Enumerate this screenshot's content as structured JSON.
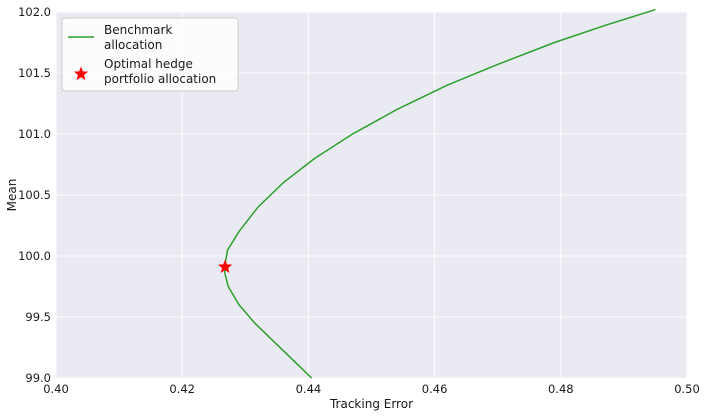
{
  "chart_data": {
    "type": "line",
    "title": "",
    "xlabel": "Tracking Error",
    "ylabel": "Mean",
    "xlim": [
      0.4,
      0.5
    ],
    "ylim": [
      99.0,
      102.0
    ],
    "xticks": [
      "0.40",
      "0.42",
      "0.44",
      "0.46",
      "0.48",
      "0.50"
    ],
    "yticks": [
      "99.0",
      "99.5",
      "100.0",
      "100.5",
      "101.0",
      "101.5",
      "102.0"
    ],
    "grid": true,
    "legend_position": "top-left",
    "series": [
      {
        "name": "Benchmark allocation",
        "legend_lines": [
          "Benchmark",
          "allocation"
        ],
        "kind": "line",
        "color": "#2ca02c",
        "x": [
          0.4405,
          0.4375,
          0.4345,
          0.4315,
          0.429,
          0.4273,
          0.4268,
          0.4267,
          0.4272,
          0.429,
          0.432,
          0.436,
          0.441,
          0.447,
          0.454,
          0.462,
          0.47,
          0.479,
          0.487,
          0.495
        ],
        "y": [
          99.0,
          99.15,
          99.3,
          99.45,
          99.6,
          99.75,
          99.85,
          99.91,
          100.05,
          100.2,
          100.4,
          100.6,
          100.8,
          101.0,
          101.2,
          101.4,
          101.57,
          101.75,
          101.89,
          102.02
        ]
      },
      {
        "name": "Optimal hedge portfolio allocation",
        "legend_lines": [
          "Optimal hedge",
          "portfolio allocation"
        ],
        "kind": "scatter",
        "marker": "star",
        "color": "#ff0000",
        "x": [
          0.4268
        ],
        "y": [
          99.91
        ]
      }
    ]
  }
}
